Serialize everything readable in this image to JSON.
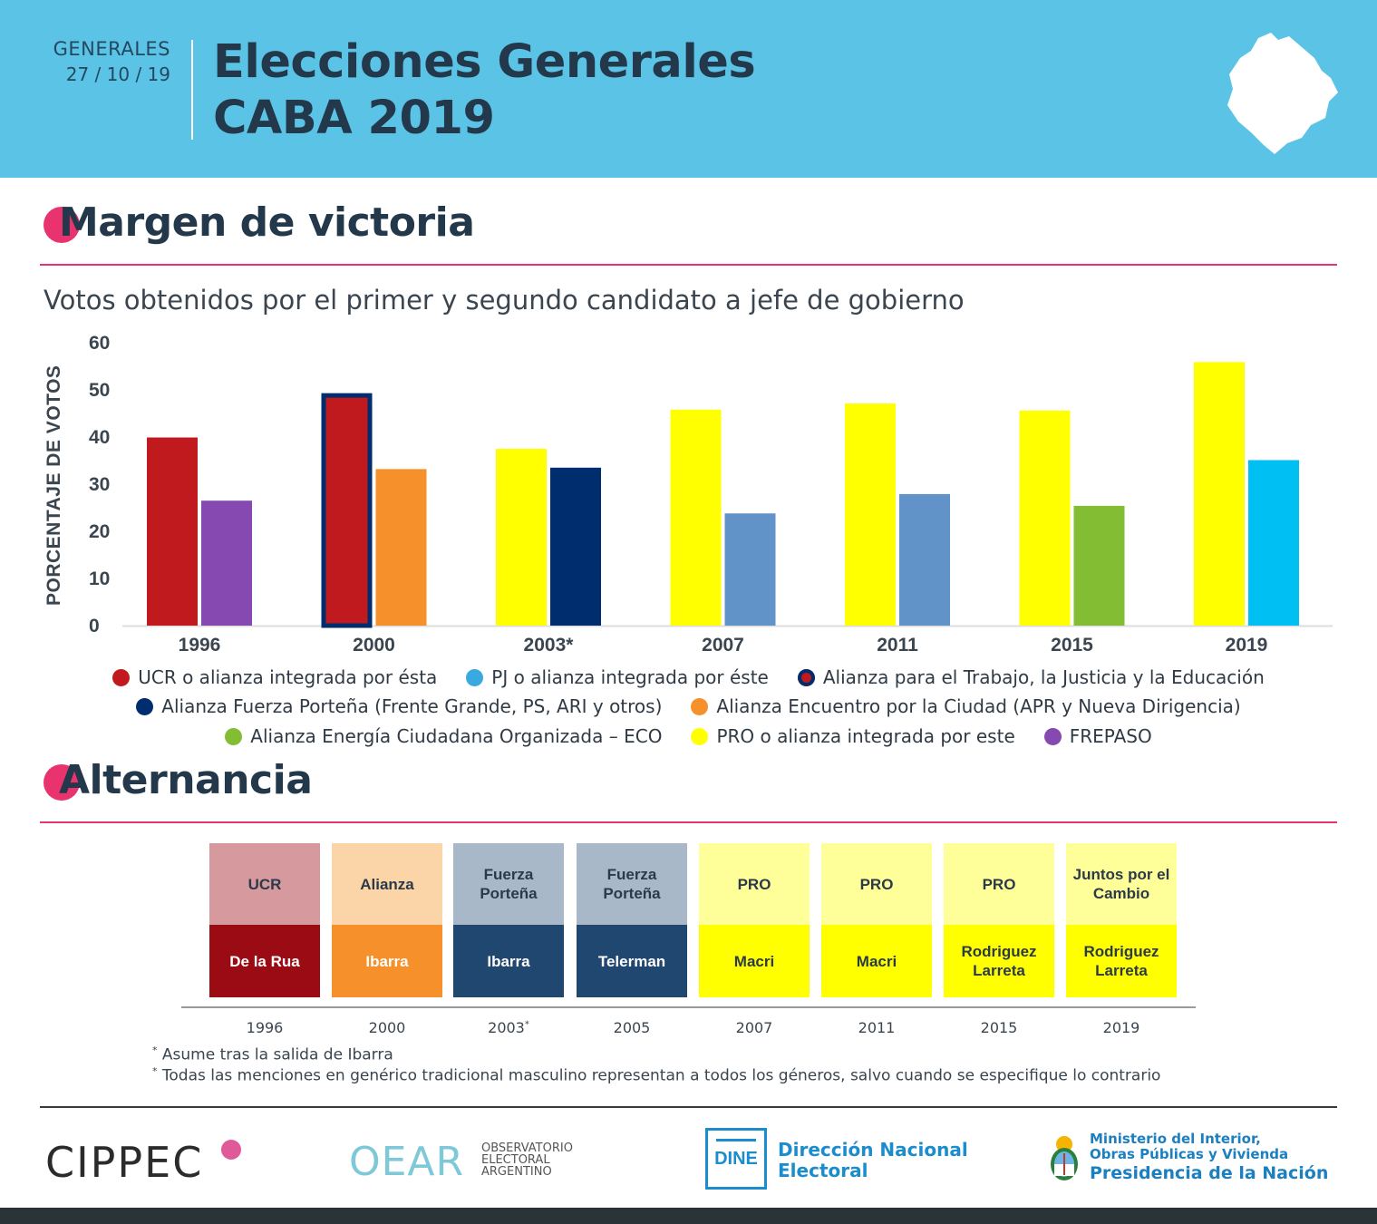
{
  "header": {
    "election_type": "GENERALES",
    "date": "27 / 10 / 19",
    "title_line1": "Elecciones Generales",
    "title_line2": "CABA 2019"
  },
  "section1": {
    "title": "Margen de victoria",
    "subtitle": "Votos obtenidos por el primer y segundo candidato a jefe de gobierno"
  },
  "chart_data": {
    "type": "bar",
    "title": "Votos obtenidos por el primer y segundo candidato a jefe de gobierno",
    "xlabel": "",
    "ylabel": "PORCENTAJE DE VOTOS",
    "ylim": [
      0,
      60
    ],
    "yticks": [
      "60",
      "50",
      "40",
      "30",
      "20",
      "10",
      "0"
    ],
    "grid": false,
    "categories": [
      "1996",
      "2000",
      "2003*",
      "2007",
      "2011",
      "2015",
      "2019"
    ],
    "series": [
      {
        "name": "Primer candidato",
        "values": [
          39.9,
          49.3,
          37.5,
          45.8,
          47.1,
          45.6,
          55.9
        ],
        "colors": [
          "#c01a1f",
          "#c01a1f",
          "#ffff00",
          "#ffff00",
          "#ffff00",
          "#ffff00",
          "#ffff00"
        ],
        "parties": [
          "UCR o alianza integrada por ésta",
          "Alianza para el Trabajo, la Justicia y la Educación",
          "PRO o alianza integrada por este",
          "PRO o alianza integrada por este",
          "PRO o alianza integrada por este",
          "PRO o alianza integrada por este",
          "PRO o alianza integrada por este"
        ]
      },
      {
        "name": "Segundo candidato",
        "values": [
          26.5,
          33.2,
          33.5,
          23.8,
          27.9,
          25.4,
          35.1
        ],
        "colors": [
          "#8549b1",
          "#f5902b",
          "#002d6e",
          "#6293c8",
          "#6293c8",
          "#82bd33",
          "#00bff3"
        ],
        "parties": [
          "FREPASO",
          "Alianza Encuentro por la Ciudad (APR y Nueva Dirigencia)",
          "Alianza Fuerza Porteña (Frente Grande, PS, ARI y otros)",
          "PJ o alianza integrada por éste",
          "PJ o alianza integrada por éste",
          "Alianza Energía Ciudadana Organizada – ECO",
          "PJ o alianza integrada por éste"
        ]
      }
    ],
    "outlined_bar": {
      "category": "2000",
      "series": 0,
      "outline_color": "#002d6e"
    }
  },
  "legend": {
    "rows": [
      [
        {
          "label": "UCR o alianza integrada por ésta",
          "color": "#c01a1f"
        },
        {
          "label": "PJ o alianza integrada por éste",
          "color": "#3aa9e0"
        },
        {
          "label": "Alianza para el Trabajo, la Justicia y la Educación",
          "color": "#c01a1f",
          "ring": "#002d6e"
        }
      ],
      [
        {
          "label": "Alianza Fuerza Porteña (Frente Grande, PS, ARI y otros)",
          "color": "#002d6e"
        },
        {
          "label": "Alianza Encuentro por la Ciudad (APR y Nueva Dirigencia)",
          "color": "#f5902b"
        }
      ],
      [
        {
          "label": "Alianza Energía Ciudadana Organizada – ECO",
          "color": "#82bd33"
        },
        {
          "label": "PRO o alianza integrada por este",
          "color": "#ffff00"
        },
        {
          "label": "FREPASO",
          "color": "#8549b1"
        }
      ]
    ]
  },
  "section2": {
    "title": "Alternancia",
    "columns": [
      {
        "party": "UCR",
        "candidate": "De la Rua",
        "year": "1996",
        "year_mark": "",
        "party_color": "#d69a9e",
        "cand_color": "#9b0b13",
        "cand_text": "#ffffff"
      },
      {
        "party": "Alianza",
        "candidate": "Ibarra",
        "year": "2000",
        "year_mark": "",
        "party_color": "#fbd4a7",
        "cand_color": "#f5902b",
        "cand_text": "#ffffff"
      },
      {
        "party": "Fuerza Porteña",
        "candidate": "Ibarra",
        "year": "2003",
        "year_mark": "*",
        "party_color": "#a8b8c8",
        "cand_color": "#1f4770",
        "cand_text": "#ffffff"
      },
      {
        "party": "Fuerza Porteña",
        "candidate": "Telerman",
        "year": "2005",
        "year_mark": "",
        "party_color": "#a8b8c8",
        "cand_color": "#1f4770",
        "cand_text": "#ffffff"
      },
      {
        "party": "PRO",
        "candidate": "Macri",
        "year": "2007",
        "year_mark": "",
        "party_color": "#ffff99",
        "cand_color": "#ffff00",
        "cand_text": "#2b3a48"
      },
      {
        "party": "PRO",
        "candidate": "Macri",
        "year": "2011",
        "year_mark": "",
        "party_color": "#ffff99",
        "cand_color": "#ffff00",
        "cand_text": "#2b3a48"
      },
      {
        "party": "PRO",
        "candidate": "Rodriguez Larreta",
        "year": "2015",
        "year_mark": "",
        "party_color": "#ffff99",
        "cand_color": "#ffff00",
        "cand_text": "#2b3a48"
      },
      {
        "party": "Juntos por el Cambio",
        "candidate": "Rodriguez Larreta",
        "year": "2019",
        "year_mark": "",
        "party_color": "#ffff99",
        "cand_color": "#ffff00",
        "cand_text": "#2b3a48"
      }
    ]
  },
  "notes": {
    "mark": "*",
    "note1": " Asume tras la salida de Ibarra",
    "note2": " Todas las menciones en genérico tradicional masculino representan a todos los géneros, salvo cuando se especifique lo contrario"
  },
  "footer": {
    "cippec": "CIPPEC",
    "oear": "OEAR",
    "oear_sub": [
      "OBSERVATORIO",
      "ELECTORAL",
      "ARGENTINO"
    ],
    "dine_box": "DINE",
    "dine_line1": "Dirección Nacional",
    "dine_line2": "Electoral",
    "ministerio_line1": "Ministerio del Interior,",
    "ministerio_line2": "Obras Públicas y Vivienda",
    "presidencia": "Presidencia de la Nación"
  },
  "colors": {
    "header_bg": "#5bc4e6",
    "accent_pink": "#e8336f",
    "dark_text": "#23384a"
  }
}
